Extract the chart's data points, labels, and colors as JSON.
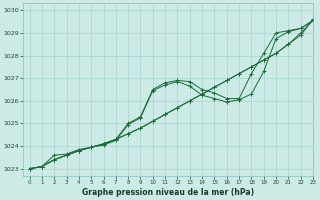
{
  "title": "Graphe pression niveau de la mer (hPa)",
  "bg_color": "#cceae6",
  "grid_color": "#aad4d0",
  "line_color": "#1a6b3a",
  "xlim": [
    -0.5,
    23
  ],
  "ylim": [
    1022.7,
    1030.3
  ],
  "yticks": [
    1023,
    1024,
    1025,
    1026,
    1027,
    1028,
    1029,
    1030
  ],
  "xticks": [
    0,
    1,
    2,
    3,
    4,
    5,
    6,
    7,
    8,
    9,
    10,
    11,
    12,
    13,
    14,
    15,
    16,
    17,
    18,
    19,
    20,
    21,
    22,
    23
  ],
  "series": [
    [
      1023.0,
      1023.1,
      1023.4,
      1023.6,
      1023.8,
      1023.95,
      1024.1,
      1024.3,
      1024.55,
      1024.8,
      1025.1,
      1025.4,
      1025.7,
      1026.0,
      1026.3,
      1026.6,
      1026.9,
      1027.2,
      1027.5,
      1027.8,
      1028.1,
      1028.5,
      1028.9,
      1029.6
    ],
    [
      1023.0,
      1023.1,
      1023.4,
      1023.6,
      1023.8,
      1023.95,
      1024.1,
      1024.3,
      1025.0,
      1025.3,
      1026.5,
      1026.8,
      1026.9,
      1026.85,
      1026.5,
      1026.35,
      1026.1,
      1026.1,
      1027.2,
      1028.1,
      1029.0,
      1029.1,
      1029.2,
      1029.55
    ],
    [
      1023.0,
      1023.1,
      1023.6,
      1023.65,
      1023.85,
      1023.95,
      1024.05,
      1024.25,
      1024.95,
      1025.25,
      1026.45,
      1026.7,
      1026.85,
      1026.65,
      1026.25,
      1026.1,
      1025.95,
      1026.05,
      1026.3,
      1027.3,
      1028.75,
      1029.05,
      1029.2,
      1029.55
    ],
    [
      1023.0,
      1023.1,
      1023.4,
      1023.6,
      1023.8,
      1023.95,
      1024.1,
      1024.3,
      1024.55,
      1024.8,
      1025.1,
      1025.4,
      1025.7,
      1026.0,
      1026.3,
      1026.6,
      1026.9,
      1027.2,
      1027.5,
      1027.8,
      1028.1,
      1028.5,
      1029.0,
      1029.55
    ]
  ]
}
